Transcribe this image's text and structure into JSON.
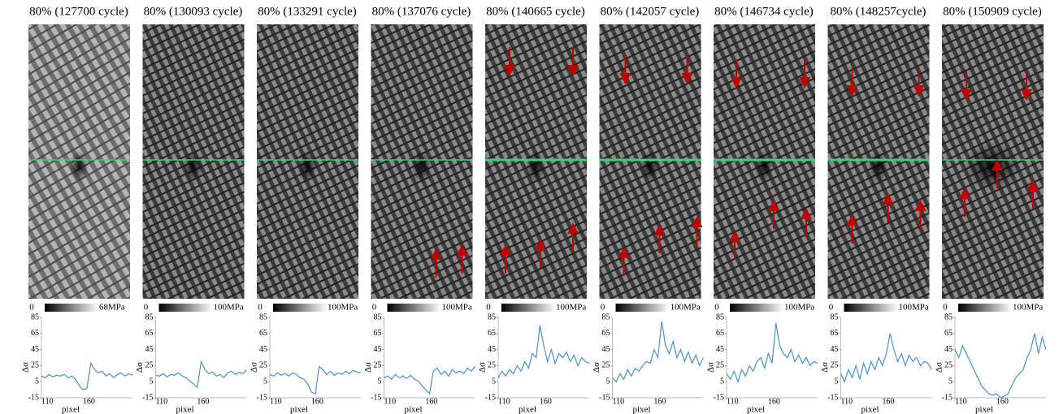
{
  "chart_data": [
    {
      "type": "line",
      "title": "80% (127700 cycle)",
      "colorbar_labels": [
        "0",
        "68MPa"
      ],
      "xlabel": "pixel",
      "ylabel": "Δσ",
      "x": [
        110,
        114,
        118,
        122,
        126,
        130,
        134,
        138,
        142,
        146,
        150,
        154,
        158,
        162,
        166,
        170,
        174,
        178,
        182,
        186,
        190,
        194,
        198,
        202,
        206
      ],
      "values": [
        12,
        10,
        14,
        11,
        13,
        12,
        14,
        10,
        12,
        8,
        0,
        -5,
        -3,
        28,
        20,
        16,
        18,
        12,
        15,
        10,
        14,
        16,
        12,
        15,
        13
      ],
      "color": "#4a90c8",
      "xlim": [
        110,
        206
      ],
      "ylim": [
        -15,
        85
      ],
      "xticks": [
        110,
        160
      ],
      "yticks": [
        -15,
        5,
        25,
        45,
        65,
        85
      ]
    },
    {
      "type": "line",
      "title": "80% (130093 cycle)",
      "colorbar_labels": [
        "0",
        "100MPa"
      ],
      "xlabel": "pixel",
      "ylabel": "Δσ",
      "x": [
        110,
        114,
        118,
        122,
        126,
        130,
        134,
        138,
        142,
        146,
        150,
        154,
        158,
        162,
        166,
        170,
        174,
        178,
        182,
        186,
        190,
        194,
        198,
        202,
        206
      ],
      "values": [
        13,
        12,
        15,
        11,
        14,
        13,
        16,
        12,
        10,
        6,
        2,
        -2,
        30,
        20,
        15,
        17,
        12,
        14,
        10,
        16,
        18,
        14,
        17,
        15,
        20
      ],
      "color": "#4a90c8",
      "xlim": [
        110,
        206
      ],
      "ylim": [
        -15,
        85
      ],
      "xticks": [
        110,
        160
      ],
      "yticks": [
        -15,
        5,
        25,
        45,
        65,
        85
      ]
    },
    {
      "type": "line",
      "title": "80% (133291  cycle)",
      "colorbar_labels": [
        "0",
        "100MPa"
      ],
      "xlabel": "pixel",
      "ylabel": "Δσ",
      "x": [
        110,
        114,
        118,
        122,
        126,
        130,
        134,
        138,
        142,
        146,
        150,
        154,
        158,
        162,
        166,
        170,
        174,
        178,
        182,
        186,
        190,
        194,
        198,
        202,
        206
      ],
      "values": [
        14,
        12,
        16,
        13,
        15,
        12,
        16,
        14,
        10,
        8,
        2,
        -8,
        -10,
        24,
        20,
        14,
        18,
        13,
        16,
        14,
        18,
        15,
        19,
        17,
        16
      ],
      "color": "#4a90c8",
      "xlim": [
        110,
        206
      ],
      "ylim": [
        -15,
        85
      ],
      "xticks": [
        110,
        160
      ],
      "yticks": [
        -15,
        5,
        25,
        45,
        65,
        85
      ]
    },
    {
      "type": "line",
      "title": "80% (137076  cycle)",
      "colorbar_labels": [
        "0",
        "100MPa"
      ],
      "xlabel": "pixel",
      "ylabel": "Δσ",
      "x": [
        110,
        114,
        118,
        122,
        126,
        130,
        134,
        138,
        142,
        146,
        150,
        154,
        158,
        162,
        166,
        170,
        174,
        178,
        182,
        186,
        190,
        194,
        198,
        202,
        206
      ],
      "values": [
        10,
        12,
        8,
        14,
        10,
        12,
        9,
        13,
        8,
        6,
        0,
        -5,
        -10,
        18,
        22,
        14,
        18,
        12,
        20,
        16,
        18,
        15,
        22,
        18,
        24
      ],
      "color": "#4a90c8",
      "xlim": [
        110,
        206
      ],
      "ylim": [
        -15,
        85
      ],
      "xticks": [
        110,
        160
      ],
      "yticks": [
        -15,
        5,
        25,
        45,
        65,
        85
      ]
    },
    {
      "type": "line",
      "title": "80% (140665  cycle)",
      "colorbar_labels": [
        "0",
        "100MPa"
      ],
      "xlabel": "pixel",
      "ylabel": "Δσ",
      "x": [
        110,
        114,
        118,
        122,
        126,
        130,
        134,
        138,
        142,
        146,
        150,
        154,
        158,
        162,
        166,
        170,
        174,
        178,
        182,
        186,
        190,
        194,
        198,
        202,
        206
      ],
      "values": [
        10,
        18,
        12,
        20,
        15,
        25,
        18,
        30,
        22,
        40,
        35,
        75,
        50,
        30,
        45,
        28,
        40,
        35,
        42,
        30,
        38,
        25,
        35,
        30,
        28
      ],
      "color": "#4a90c8",
      "xlim": [
        110,
        206
      ],
      "ylim": [
        -15,
        85
      ],
      "xticks": [
        110,
        160
      ],
      "yticks": [
        -15,
        5,
        25,
        45,
        65,
        85
      ]
    },
    {
      "type": "line",
      "title": "80% (142057  cycle)",
      "colorbar_labels": [
        "0",
        "100MPa"
      ],
      "xlabel": "pixel",
      "ylabel": "Δσ",
      "x": [
        110,
        114,
        118,
        122,
        126,
        130,
        134,
        138,
        142,
        146,
        150,
        154,
        158,
        162,
        166,
        170,
        174,
        178,
        182,
        186,
        190,
        194,
        198,
        202,
        206
      ],
      "values": [
        10,
        5,
        15,
        8,
        20,
        12,
        22,
        18,
        25,
        30,
        28,
        45,
        35,
        80,
        50,
        40,
        55,
        35,
        45,
        30,
        42,
        28,
        38,
        25,
        35
      ],
      "color": "#4a90c8",
      "xlim": [
        110,
        206
      ],
      "ylim": [
        -15,
        85
      ],
      "xticks": [
        110,
        160
      ],
      "yticks": [
        -15,
        5,
        25,
        45,
        65,
        85
      ]
    },
    {
      "type": "line",
      "title": "80% (146734  cycle)",
      "colorbar_labels": [
        "0",
        "100MPa"
      ],
      "xlabel": "pixel",
      "ylabel": "Δσ",
      "x": [
        110,
        114,
        118,
        122,
        126,
        130,
        134,
        138,
        142,
        146,
        150,
        154,
        158,
        162,
        166,
        170,
        174,
        178,
        182,
        186,
        190,
        194,
        198,
        202,
        206
      ],
      "values": [
        15,
        8,
        18,
        5,
        20,
        12,
        25,
        18,
        30,
        35,
        22,
        40,
        28,
        78,
        50,
        40,
        35,
        45,
        30,
        38,
        28,
        35,
        25,
        30,
        28
      ],
      "color": "#4a90c8",
      "xlim": [
        110,
        206
      ],
      "ylim": [
        -15,
        85
      ],
      "xticks": [
        110,
        160
      ],
      "yticks": [
        -15,
        5,
        25,
        45,
        65,
        85
      ]
    },
    {
      "type": "line",
      "title": "80% (148257cycle)",
      "colorbar_labels": [
        "0",
        "100MPa"
      ],
      "xlabel": "pixel",
      "ylabel": "Δσ",
      "x": [
        110,
        114,
        118,
        122,
        126,
        130,
        134,
        138,
        142,
        146,
        150,
        154,
        158,
        162,
        166,
        170,
        174,
        178,
        182,
        186,
        190,
        194,
        198,
        202,
        206
      ],
      "values": [
        15,
        5,
        20,
        10,
        25,
        8,
        28,
        15,
        30,
        20,
        35,
        25,
        40,
        65,
        45,
        30,
        40,
        25,
        38,
        30,
        35,
        25,
        30,
        28,
        20
      ],
      "color": "#4a90c8",
      "xlim": [
        110,
        206
      ],
      "ylim": [
        -15,
        85
      ],
      "xticks": [
        110,
        160
      ],
      "yticks": [
        -15,
        5,
        25,
        45,
        65,
        85
      ]
    },
    {
      "type": "line",
      "title": "80% (150909  cycle)",
      "colorbar_labels": [
        "0",
        "100MPa"
      ],
      "xlabel": "pixel",
      "ylabel": "Δσ",
      "x": [
        110,
        114,
        118,
        122,
        126,
        130,
        134,
        138,
        142,
        146,
        150,
        154,
        158,
        162,
        166,
        170,
        174,
        178,
        182,
        186,
        190,
        194,
        198,
        202,
        206
      ],
      "values": [
        45,
        35,
        50,
        40,
        30,
        20,
        10,
        0,
        -5,
        -10,
        -12,
        -10,
        -15,
        -13,
        -10,
        0,
        10,
        15,
        20,
        35,
        45,
        65,
        40,
        60,
        45
      ],
      "color": "#4a90c8",
      "xlim": [
        110,
        206
      ],
      "ylim": [
        -15,
        85
      ],
      "xticks": [
        110,
        160
      ],
      "yticks": [
        -15,
        5,
        25,
        45,
        65,
        85
      ]
    }
  ]
}
